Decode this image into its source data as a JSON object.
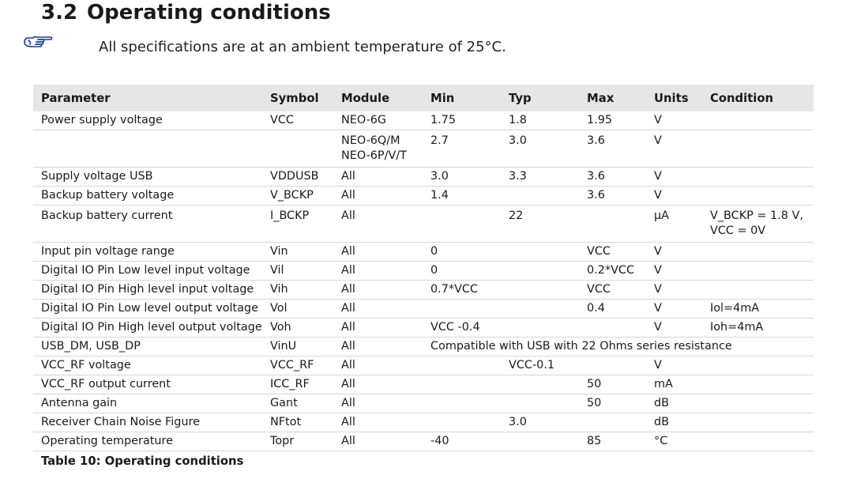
{
  "section": {
    "number": "3.2",
    "title": "Operating conditions"
  },
  "note": {
    "icon": "pointing-hand-icon",
    "text": "All specifications are at an ambient temperature of 25°C."
  },
  "table": {
    "headers": [
      "Parameter",
      "Symbol",
      "Module",
      "Min",
      "Typ",
      "Max",
      "Units",
      "Condition"
    ],
    "rows": [
      {
        "parameter": "Power supply voltage",
        "symbol": "VCC",
        "module": "NEO-6G",
        "min": "1.75",
        "typ": "1.8",
        "max": "1.95",
        "units": "V",
        "condition": ""
      },
      {
        "parameter": "",
        "symbol": "",
        "module": "NEO-6Q/M\nNEO-6P/V/T",
        "min": "2.7",
        "typ": "3.0",
        "max": "3.6",
        "units": "V",
        "condition": ""
      },
      {
        "parameter": "Supply voltage USB",
        "symbol": "VDDUSB",
        "module": "All",
        "min": "3.0",
        "typ": "3.3",
        "max": "3.6",
        "units": "V",
        "condition": ""
      },
      {
        "parameter": "Backup battery voltage",
        "symbol": "V_BCKP",
        "module": "All",
        "min": "1.4",
        "typ": "",
        "max": "3.6",
        "units": "V",
        "condition": ""
      },
      {
        "parameter": "Backup battery current",
        "symbol": "I_BCKP",
        "module": "All",
        "min": "",
        "typ": "22",
        "max": "",
        "units": "µA",
        "condition": "V_BCKP = 1.8 V,\nVCC = 0V"
      },
      {
        "parameter": "Input pin voltage range",
        "symbol": "Vin",
        "module": "All",
        "min": "0",
        "typ": "",
        "max": "VCC",
        "units": "V",
        "condition": ""
      },
      {
        "parameter": "Digital IO Pin Low level input voltage",
        "symbol": "Vil",
        "module": "All",
        "min": "0",
        "typ": "",
        "max": "0.2*VCC",
        "units": "V",
        "condition": ""
      },
      {
        "parameter": "Digital IO Pin High level input voltage",
        "symbol": "Vih",
        "module": "All",
        "min": "0.7*VCC",
        "typ": "",
        "max": "VCC",
        "units": "V",
        "condition": ""
      },
      {
        "parameter": "Digital IO Pin Low level output voltage",
        "symbol": "Vol",
        "module": "All",
        "min": "",
        "typ": "",
        "max": "0.4",
        "units": "V",
        "condition": "Iol=4mA"
      },
      {
        "parameter": "Digital IO Pin High level output voltage",
        "symbol": "Voh",
        "module": "All",
        "min": "VCC -0.4",
        "typ": "",
        "max": "",
        "units": "V",
        "condition": "Ioh=4mA"
      },
      {
        "parameter": "USB_DM, USB_DP",
        "symbol": "VinU",
        "module": "All",
        "span": "Compatible with USB with 22 Ohms series resistance"
      },
      {
        "parameter": "VCC_RF voltage",
        "symbol": "VCC_RF",
        "module": "All",
        "min": "",
        "typ": "VCC-0.1",
        "max": "",
        "units": "V",
        "condition": ""
      },
      {
        "parameter": "VCC_RF output current",
        "symbol": "ICC_RF",
        "module": "All",
        "min": "",
        "typ": "",
        "max": "50",
        "units": "mA",
        "condition": ""
      },
      {
        "parameter": "Antenna gain",
        "symbol": "Gant",
        "module": "All",
        "min": "",
        "typ": "",
        "max": "50",
        "units": "dB",
        "condition": ""
      },
      {
        "parameter": "Receiver Chain Noise Figure",
        "symbol": "NFtot",
        "module": "All",
        "min": "",
        "typ": "3.0",
        "max": "",
        "units": "dB",
        "condition": ""
      },
      {
        "parameter": "Operating temperature",
        "symbol": "Topr",
        "module": "All",
        "min": "-40",
        "typ": "",
        "max": "85",
        "units": "°C",
        "condition": ""
      }
    ],
    "caption": "Table 10: Operating conditions"
  }
}
